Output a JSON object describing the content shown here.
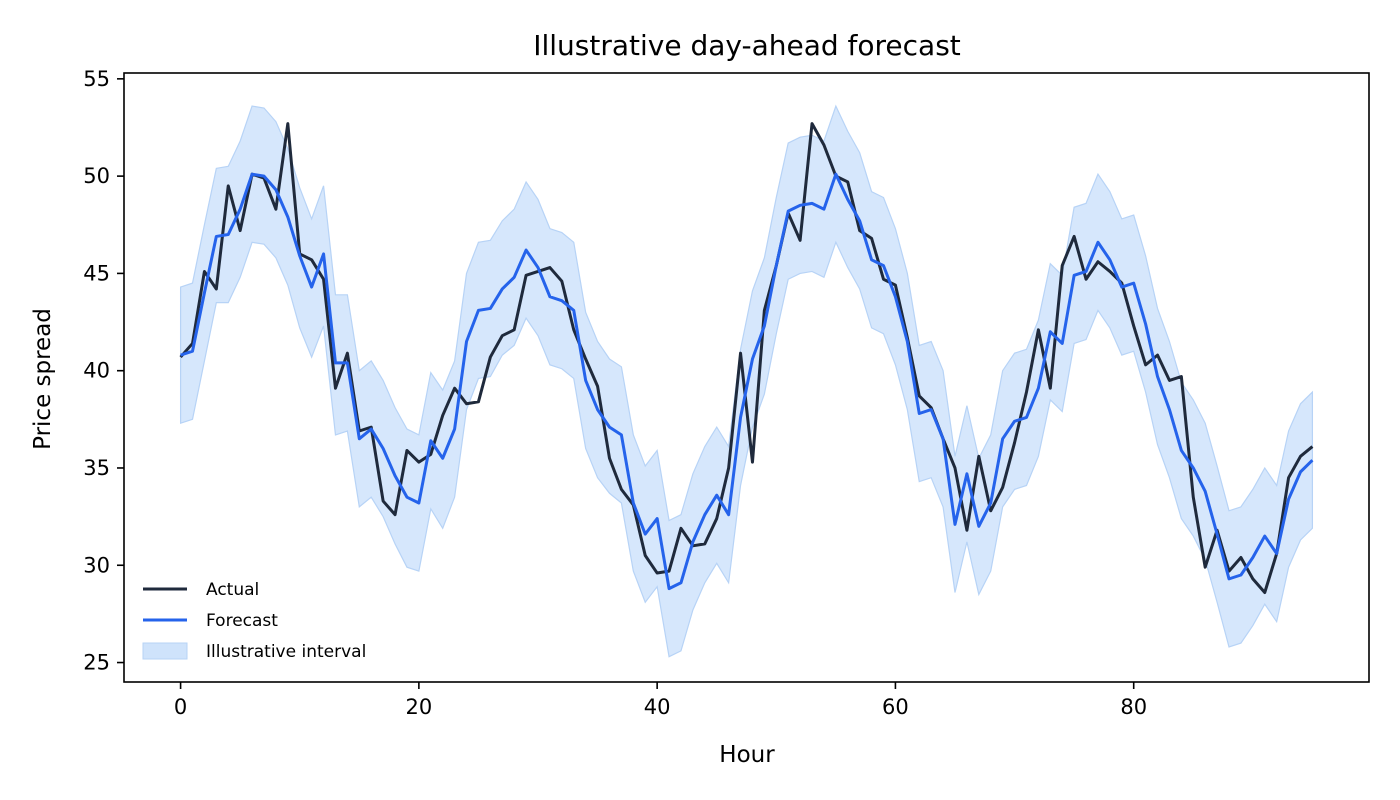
{
  "chart_data": {
    "type": "line",
    "title": "Illustrative day-ahead forecast",
    "xlabel": "Hour",
    "ylabel": "Price spread",
    "xlim": [
      -4.75,
      99.75
    ],
    "ylim": [
      24.0,
      55.3
    ],
    "xticks": [
      0,
      20,
      40,
      60,
      80
    ],
    "yticks": [
      25,
      30,
      35,
      40,
      45,
      50,
      55
    ],
    "grid": false,
    "legend_position": "lower-left",
    "x": [
      0,
      1,
      2,
      3,
      4,
      5,
      6,
      7,
      8,
      9,
      10,
      11,
      12,
      13,
      14,
      15,
      16,
      17,
      18,
      19,
      20,
      21,
      22,
      23,
      24,
      25,
      26,
      27,
      28,
      29,
      30,
      31,
      32,
      33,
      34,
      35,
      36,
      37,
      38,
      39,
      40,
      41,
      42,
      43,
      44,
      45,
      46,
      47,
      48,
      49,
      50,
      51,
      52,
      53,
      54,
      55,
      56,
      57,
      58,
      59,
      60,
      61,
      62,
      63,
      64,
      65,
      66,
      67,
      68,
      69,
      70,
      71,
      72,
      73,
      74,
      75,
      76,
      77,
      78,
      79,
      80,
      81,
      82,
      83,
      84,
      85,
      86,
      87,
      88,
      89,
      90,
      91,
      92,
      93,
      94,
      95
    ],
    "series": [
      {
        "name": "Actual",
        "color": "#1f2a3c",
        "values": [
          40.7,
          41.4,
          45.1,
          44.2,
          49.5,
          47.2,
          50.1,
          49.9,
          48.3,
          52.7,
          46.0,
          45.7,
          44.7,
          39.1,
          40.9,
          36.9,
          37.1,
          33.3,
          32.6,
          35.9,
          35.3,
          35.7,
          37.7,
          39.1,
          38.3,
          38.4,
          40.7,
          41.8,
          42.1,
          44.9,
          45.1,
          45.3,
          44.6,
          42.1,
          40.6,
          39.2,
          35.5,
          33.9,
          33.1,
          30.5,
          29.6,
          29.7,
          31.9,
          31.0,
          31.1,
          32.4,
          35.0,
          40.9,
          35.3,
          43.1,
          45.4,
          48.1,
          46.7,
          52.7,
          51.6,
          50.0,
          49.7,
          47.2,
          46.8,
          44.7,
          44.4,
          41.7,
          38.7,
          38.1,
          36.5,
          35.0,
          31.8,
          35.6,
          32.8,
          34.0,
          36.3,
          38.9,
          42.1,
          39.1,
          45.4,
          46.9,
          44.7,
          45.6,
          45.1,
          44.5,
          42.3,
          40.3,
          40.8,
          39.5,
          39.7,
          33.5,
          29.9,
          31.8,
          29.7,
          30.4,
          29.3,
          28.6,
          30.6,
          34.5,
          35.6,
          36.1
        ]
      },
      {
        "name": "Forecast",
        "color": "#2563eb",
        "values": [
          40.8,
          41.0,
          44.0,
          46.9,
          47.0,
          48.3,
          50.1,
          50.0,
          49.3,
          47.9,
          45.9,
          44.3,
          46.0,
          40.4,
          40.4,
          36.5,
          37.0,
          36.0,
          34.6,
          33.5,
          33.2,
          36.4,
          35.5,
          37.0,
          41.5,
          43.1,
          43.2,
          44.2,
          44.8,
          46.2,
          45.3,
          43.8,
          43.6,
          43.1,
          39.5,
          38.0,
          37.1,
          36.7,
          33.2,
          31.6,
          32.4,
          28.8,
          29.1,
          31.2,
          32.6,
          33.6,
          32.6,
          37.6,
          40.6,
          42.3,
          45.4,
          48.2,
          48.5,
          48.6,
          48.3,
          50.1,
          48.8,
          47.7,
          45.7,
          45.4,
          43.8,
          41.5,
          37.8,
          38.0,
          36.5,
          32.1,
          34.7,
          32.0,
          33.2,
          36.5,
          37.4,
          37.6,
          39.1,
          42.0,
          41.4,
          44.9,
          45.1,
          46.6,
          45.7,
          44.3,
          44.5,
          42.4,
          39.7,
          38.0,
          35.9,
          35.0,
          33.8,
          31.6,
          29.3,
          29.5,
          30.4,
          31.5,
          30.6,
          33.4,
          34.8,
          35.4
        ]
      }
    ],
    "interval": {
      "name": "Illustrative interval",
      "color": "#cfe3fb",
      "edge_color": "#b7d3f6",
      "lower": [
        37.3,
        37.5,
        40.5,
        43.5,
        43.5,
        44.8,
        46.6,
        46.5,
        45.8,
        44.4,
        42.2,
        40.7,
        42.3,
        36.7,
        36.9,
        33.0,
        33.5,
        32.5,
        31.1,
        29.9,
        29.7,
        32.9,
        31.9,
        33.5,
        38.0,
        39.6,
        39.7,
        40.8,
        41.3,
        42.7,
        41.8,
        40.3,
        40.1,
        39.6,
        36.0,
        34.5,
        33.7,
        33.2,
        29.7,
        28.1,
        28.9,
        25.3,
        25.6,
        27.7,
        29.1,
        30.1,
        29.1,
        34.1,
        37.1,
        38.8,
        41.9,
        44.7,
        45.0,
        45.1,
        44.8,
        46.6,
        45.3,
        44.2,
        42.2,
        41.9,
        40.3,
        38.0,
        34.3,
        34.5,
        33.0,
        28.6,
        31.2,
        28.5,
        29.7,
        33.0,
        33.9,
        34.1,
        35.6,
        38.5,
        37.9,
        41.4,
        41.6,
        43.1,
        42.2,
        40.8,
        41.0,
        38.9,
        36.2,
        34.5,
        32.4,
        31.5,
        30.3,
        28.1,
        25.8,
        26.0,
        26.9,
        28.0,
        27.1,
        29.9,
        31.3,
        31.9
      ],
      "upper": [
        44.3,
        44.5,
        47.5,
        50.4,
        50.5,
        51.8,
        53.6,
        53.5,
        52.8,
        51.4,
        49.4,
        47.8,
        49.5,
        43.9,
        43.9,
        40.0,
        40.5,
        39.5,
        38.1,
        37.0,
        36.7,
        39.9,
        39.0,
        40.5,
        45.0,
        46.6,
        46.7,
        47.7,
        48.3,
        49.7,
        48.8,
        47.3,
        47.1,
        46.6,
        43.0,
        41.5,
        40.6,
        40.2,
        36.7,
        35.1,
        35.9,
        32.3,
        32.6,
        34.7,
        36.1,
        37.1,
        36.1,
        41.1,
        44.1,
        45.8,
        48.9,
        51.7,
        52.0,
        52.1,
        51.8,
        53.6,
        52.3,
        51.2,
        49.2,
        48.9,
        47.3,
        45.0,
        41.3,
        41.5,
        40.0,
        35.6,
        38.2,
        35.5,
        36.7,
        40.0,
        40.9,
        41.1,
        42.6,
        45.5,
        44.9,
        48.4,
        48.6,
        50.1,
        49.2,
        47.8,
        48.0,
        45.9,
        43.2,
        41.5,
        39.4,
        38.5,
        37.3,
        35.1,
        32.8,
        33.0,
        33.9,
        35.0,
        34.1,
        36.9,
        38.3,
        38.9
      ]
    }
  }
}
